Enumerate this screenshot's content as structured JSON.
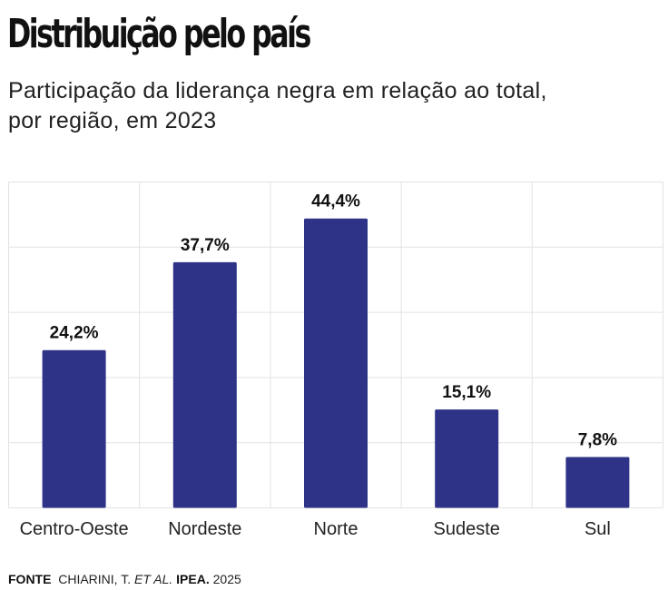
{
  "chart_data": {
    "type": "bar",
    "title": "Distribuição pelo país",
    "subtitle": "Participação da liderança negra em relação ao total, por região, em 2023",
    "categories": [
      "Centro-Oeste",
      "Nordeste",
      "Norte",
      "Sudeste",
      "Sul"
    ],
    "values": [
      24.2,
      37.7,
      44.4,
      15.1,
      7.8
    ],
    "labels": [
      "24,2%",
      "37,7%",
      "44,4%",
      "15,1%",
      "7,8%"
    ],
    "xlabel": "",
    "ylabel": "",
    "ylim": [
      0,
      50
    ],
    "grid": true,
    "bar_color": "#2e3388"
  },
  "footer": {
    "label": "FONTE",
    "author": "CHIARINI, T.",
    "etal": "ET AL.",
    "publisher": "IPEA.",
    "year": "2025"
  }
}
